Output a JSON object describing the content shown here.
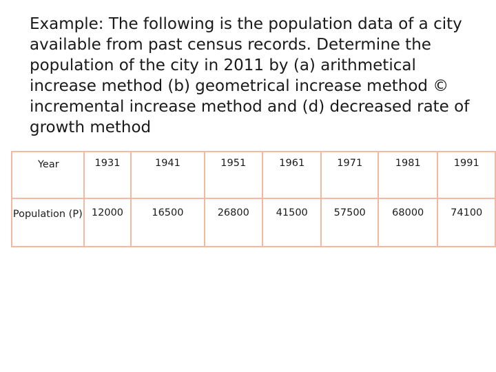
{
  "problem_text": "Example: The following is the population data of a city available from past census records. Determine the population of the city in 2011 by (a) arithmetical increase method (b) geometrical increase method © incremental increase method and (d) decreased rate of growth method",
  "table": {
    "year_label": "Year",
    "population_label": "Population (P)",
    "years": [
      "1931",
      "1941",
      "1951",
      "1961",
      "1971",
      "1981",
      "1991"
    ],
    "populations": [
      "12000",
      "16500",
      "26800",
      "41500",
      "57500",
      "68000",
      "74100"
    ]
  },
  "colors": {
    "table_border": "#f2b8a0",
    "text": "#1a1a1a"
  }
}
